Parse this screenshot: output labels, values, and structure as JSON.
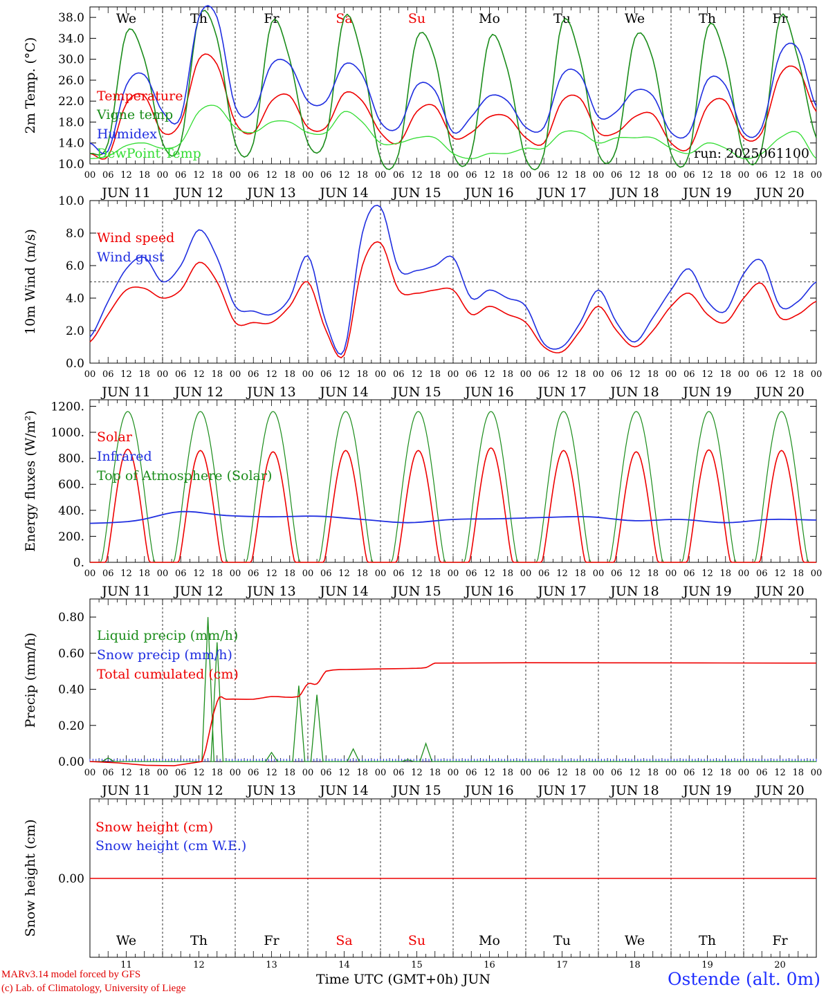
{
  "days": [
    "We",
    "Th",
    "Fr",
    "Sa",
    "Su",
    "Mo",
    "Tu",
    "We",
    "Th",
    "Fr"
  ],
  "weekend_days": [
    3,
    4
  ],
  "date_labels": [
    "JUN 11",
    "JUN 12",
    "JUN 13",
    "JUN 14",
    "JUN 15",
    "JUN 16",
    "JUN 17",
    "JUN 18",
    "JUN 19",
    "JUN 20"
  ],
  "hour_ticks": [
    "00",
    "06",
    "12",
    "18"
  ],
  "day_numbers": [
    "11",
    "12",
    "13",
    "14",
    "15",
    "16",
    "17",
    "18",
    "19",
    "20"
  ],
  "colors": {
    "red": "#ee0000",
    "green": "#1a8c1a",
    "blue": "#1f2ee0",
    "lightgreen": "#33dd33",
    "black": "#000000"
  },
  "footer": {
    "model": "MARv3.14 model forced by GFS",
    "copyright": "(c) Lab. of Climatology, University of Liege",
    "xlabel": "Time UTC (GMT+0h) JUN",
    "location": "Ostende (alt. 0m)"
  },
  "chart_data": [
    {
      "type": "line",
      "ylabel": "2m Temp. (°C)",
      "ylim": [
        10,
        40
      ],
      "yticks": [
        "10.0",
        "14.0",
        "18.0",
        "22.0",
        "26.0",
        "30.0",
        "34.0",
        "38.0"
      ],
      "run_label": "run: 2025061100",
      "x_hours": [
        0,
        6,
        12,
        18,
        24,
        30,
        36,
        42,
        48,
        54,
        60,
        66,
        72,
        78,
        84,
        90,
        96,
        102,
        108,
        114,
        120,
        126,
        132,
        138,
        144,
        150,
        156,
        162,
        168,
        174,
        180,
        186,
        192,
        198,
        204,
        210,
        216,
        222,
        228,
        234,
        240
      ],
      "series": [
        {
          "name": "Temperature",
          "color": "red",
          "values": [
            12,
            11.5,
            21.5,
            23,
            16,
            18,
            30,
            29,
            18,
            16,
            22,
            23,
            17,
            17,
            23.5,
            22,
            16,
            14,
            20,
            21,
            15,
            16,
            19,
            19,
            15,
            14,
            22,
            22.5,
            16,
            16,
            19,
            19.5,
            14,
            13,
            21,
            22,
            15,
            16,
            27,
            28,
            20
          ]
        },
        {
          "name": "Vigne temp",
          "color": "green",
          "values": [
            12,
            14,
            35,
            30,
            14,
            14,
            38,
            34,
            14,
            14,
            37,
            30,
            14,
            15,
            38,
            30,
            11,
            12,
            34,
            30,
            12,
            12,
            34,
            28,
            11,
            12,
            37,
            30,
            12,
            13,
            34,
            30,
            12,
            12,
            36,
            30,
            12,
            13,
            38,
            30,
            15
          ]
        },
        {
          "name": "Humidex",
          "color": "blue",
          "values": [
            14,
            12.5,
            25,
            27,
            20,
            19,
            38,
            38,
            21,
            20,
            29,
            29,
            22,
            22,
            29,
            27,
            18,
            17,
            25,
            24,
            16,
            19,
            23,
            22,
            17,
            17,
            27,
            27,
            19,
            20,
            24,
            23,
            16,
            16,
            26,
            25,
            16,
            17,
            31,
            32,
            21
          ]
        },
        {
          "name": "DewPoint Temp",
          "color": "lightgreen",
          "values": [
            11,
            11.5,
            13.5,
            14,
            13,
            14,
            20,
            21,
            17,
            16,
            18,
            18,
            16,
            16,
            20,
            18,
            14,
            14,
            15,
            15,
            12,
            11,
            12,
            12,
            13,
            13,
            16,
            16,
            14,
            15,
            15,
            15,
            13,
            12,
            14,
            13,
            11,
            12,
            15,
            16,
            11
          ]
        }
      ]
    },
    {
      "type": "line",
      "ylabel": "10m Wind (m/s)",
      "ylim": [
        0,
        10
      ],
      "yticks": [
        "0.0",
        "2.0",
        "4.0",
        "6.0",
        "8.0",
        "10.0"
      ],
      "hline": 5,
      "x_hours": [
        0,
        6,
        12,
        18,
        24,
        30,
        36,
        42,
        48,
        54,
        60,
        66,
        72,
        78,
        84,
        90,
        96,
        102,
        108,
        114,
        120,
        126,
        132,
        138,
        144,
        150,
        156,
        162,
        168,
        174,
        180,
        186,
        192,
        198,
        204,
        210,
        216,
        222,
        228,
        234,
        240
      ],
      "series": [
        {
          "name": "Wind speed",
          "color": "red",
          "values": [
            1.3,
            3,
            4.5,
            4.6,
            4,
            4.5,
            6.2,
            5,
            2.5,
            2.5,
            2.5,
            3.5,
            5,
            2,
            0.5,
            6,
            7.4,
            4.5,
            4.3,
            4.5,
            4.5,
            3,
            3.5,
            3,
            2.5,
            1,
            0.7,
            2,
            3.5,
            2,
            1,
            2,
            3.5,
            4.3,
            3,
            2.5,
            4,
            4.9,
            2.8,
            3,
            3.8
          ]
        },
        {
          "name": "Wind gust",
          "color": "blue",
          "values": [
            1.6,
            3.8,
            5.8,
            6.5,
            5,
            6,
            8.2,
            6.5,
            3.5,
            3.2,
            3,
            4,
            6.6,
            2.5,
            0.8,
            8,
            9.6,
            5.8,
            5.7,
            6,
            6.5,
            4,
            4.5,
            4,
            3.5,
            1.2,
            1,
            2.5,
            4.5,
            2.5,
            1.3,
            2.8,
            4.5,
            5.8,
            3.8,
            3.2,
            5.5,
            6.3,
            3.5,
            3.8,
            5
          ]
        }
      ]
    },
    {
      "type": "line",
      "ylabel": "Energy fluxes (W/m²)",
      "ylim": [
        0,
        1250
      ],
      "yticks": [
        "0.",
        "200.",
        "400.",
        "600.",
        "800.",
        "1000.",
        "1200."
      ],
      "series": [
        {
          "name": "Solar",
          "color": "red",
          "peaks": [
            870,
            860,
            850,
            860,
            860,
            880,
            860,
            850,
            865,
            860
          ]
        },
        {
          "name": "Infrared",
          "color": "blue",
          "level": [
            300,
            320,
            390,
            360,
            350,
            355,
            330,
            305,
            330,
            335,
            345,
            350,
            320,
            330,
            305,
            330,
            325
          ]
        },
        {
          "name": "Top of Atmosphere (Solar)",
          "color": "green",
          "peaks": [
            1160,
            1160,
            1160,
            1160,
            1160,
            1160,
            1160,
            1160,
            1160,
            1160
          ]
        }
      ]
    },
    {
      "type": "line",
      "ylabel": "Precip (mm/h)",
      "ylim": [
        0,
        0.9
      ],
      "yticks": [
        "0.00",
        "0.20",
        "0.40",
        "0.60",
        "0.80"
      ],
      "series": [
        {
          "name": "Liquid precip (mm/h)",
          "color": "green",
          "spikes": [
            [
              6,
              0.02
            ],
            [
              39,
              0.8
            ],
            [
              42,
              0.66
            ],
            [
              60,
              0.05
            ],
            [
              69,
              0.42
            ],
            [
              75,
              0.37
            ],
            [
              87,
              0.07
            ],
            [
              105,
              0.01
            ],
            [
              111,
              0.1
            ]
          ]
        },
        {
          "name": "Snow precip (mm/h)",
          "color": "blue",
          "values": [
            0
          ]
        },
        {
          "name": "Total cumulated (cm)",
          "color": "red",
          "steps": [
            [
              0,
              0
            ],
            [
              37,
              0
            ],
            [
              42,
              0.33
            ],
            [
              45,
              0.345
            ],
            [
              54,
              0.345
            ],
            [
              60,
              0.36
            ],
            [
              69,
              0.36
            ],
            [
              72,
              0.43
            ],
            [
              75,
              0.43
            ],
            [
              78,
              0.5
            ],
            [
              87,
              0.51
            ],
            [
              105,
              0.515
            ],
            [
              111,
              0.52
            ],
            [
              114,
              0.545
            ],
            [
              240,
              0.545
            ]
          ]
        }
      ]
    },
    {
      "type": "line",
      "ylabel": "Snow height (cm)",
      "yticks": [
        "0.00"
      ],
      "series": [
        {
          "name": "Snow height (cm)",
          "color": "red",
          "values": [
            0
          ]
        },
        {
          "name": "Snow height (cm W.E.)",
          "color": "blue",
          "values": [
            0
          ]
        }
      ]
    }
  ]
}
